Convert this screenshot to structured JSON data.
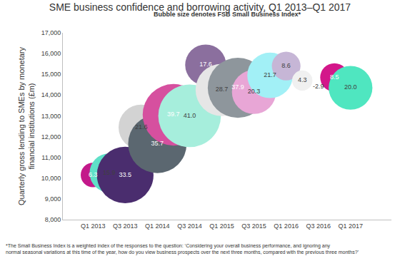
{
  "chart_data": {
    "type": "bubble",
    "title": "SME business confidence and borrowing activity, Q1 2013–Q1 2017",
    "subtitle": "Bubble size denotes FSB Small Business Index*",
    "y_label": [
      "Quarterly gross lending to SMEs by monetary",
      "financial institutions (£m)"
    ],
    "categories": [
      "Q1 2013",
      null,
      "Q3 2013",
      null,
      "Q1 2014",
      null,
      "Q3 2014",
      null,
      "Q1 2015",
      null,
      "Q3 2015",
      null,
      "Q1 2016",
      null,
      "Q3 2016",
      null,
      "Q1 2017"
    ],
    "values": [
      10150,
      10250,
      10150,
      12450,
      11650,
      13050,
      13000,
      15450,
      14250,
      14350,
      14150,
      14950,
      15400,
      14700,
      14400,
      14850,
      14350
    ],
    "sizes": [
      6.3,
      15.9,
      33.5,
      21.6,
      35.7,
      39.7,
      41.0,
      17.6,
      28.7,
      37.9,
      20.3,
      21.7,
      8.6,
      4.3,
      -2.9,
      8.5,
      20.0
    ],
    "size_labels": [
      "6.3",
      "15.9",
      "33.5",
      "21.6",
      "35.7",
      "39.7",
      "41.0",
      "17.6",
      "28.7",
      "37.9",
      "20.3",
      "21.7",
      "8.6",
      "4.3",
      "-2.9",
      "8.5",
      "20.0"
    ],
    "colors": [
      "#c3198a",
      "#5fe0c8",
      "#4a2d6e",
      "#d3d3d3",
      "#5b6770",
      "#d6509f",
      "#a6eedc",
      "#8b6f9e",
      "#e6e6e6",
      "#8e969c",
      "#e8a6d6",
      "#a2f0f6",
      "#c6b6d6",
      "#f0f0f0",
      "#ffffff",
      "#d3178a",
      "#4fe6c0"
    ],
    "ylim": [
      8000,
      17000
    ],
    "yticks": [
      {
        "value": 8000,
        "label": "8,000"
      },
      {
        "value": 9000,
        "label": "9,000"
      },
      {
        "value": 10000,
        "label": "10,000"
      },
      {
        "value": 11000,
        "label": "11,000"
      },
      {
        "value": 12000,
        "label": "12,000"
      },
      {
        "value": 13000,
        "label": "13,000"
      },
      {
        "value": 14000,
        "label": "14,000"
      },
      {
        "value": 15000,
        "label": "15,000"
      },
      {
        "value": 16000,
        "label": "16,000"
      },
      {
        "value": 17000,
        "label": "17,000"
      }
    ],
    "grid": false,
    "data_labels": true,
    "footnote": [
      "*The Small Business Index is a weighted index of the responses to the question: ‘Considering your overall business performance, and ignoring any",
      "normal seasonal variations at this time of the year, how do you view business prospects over the next three months, compared with the previous three months?’"
    ]
  }
}
